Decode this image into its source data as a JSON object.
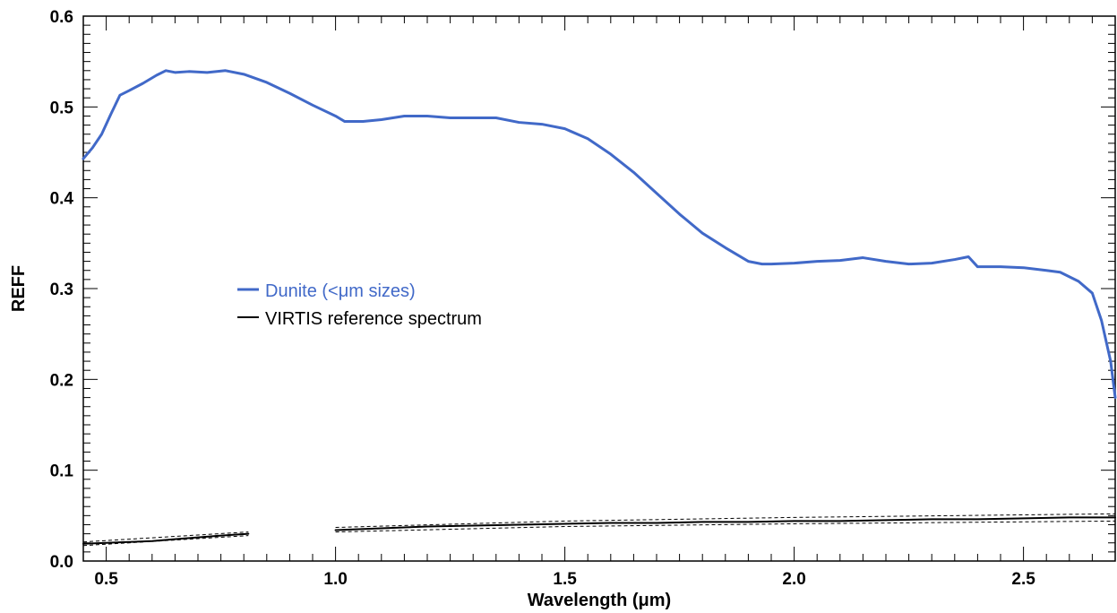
{
  "chart_data": {
    "type": "line",
    "xlabel": "Wavelength (μm)",
    "ylabel": "REFF",
    "xlim": [
      0.45,
      2.7
    ],
    "ylim": [
      0.0,
      0.6
    ],
    "x_ticks": [
      {
        "value": 0.5,
        "label": "0.5"
      },
      {
        "value": 1.0,
        "label": "1.0"
      },
      {
        "value": 1.5,
        "label": "1.5"
      },
      {
        "value": 2.0,
        "label": "2.0"
      },
      {
        "value": 2.5,
        "label": "2.5"
      }
    ],
    "y_ticks": [
      {
        "value": 0.0,
        "label": "0.0"
      },
      {
        "value": 0.1,
        "label": "0.1"
      },
      {
        "value": 0.2,
        "label": "0.2"
      },
      {
        "value": 0.3,
        "label": "0.3"
      },
      {
        "value": 0.4,
        "label": "0.4"
      },
      {
        "value": 0.5,
        "label": "0.5"
      },
      {
        "value": 0.6,
        "label": "0.6"
      }
    ],
    "legend_position": "center-left",
    "grid": false,
    "series": [
      {
        "name": "Dunite (<μm sizes)",
        "color": "#4169c8",
        "style": "solid",
        "segments": [
          {
            "x": [
              0.45,
              0.47,
              0.49,
              0.51,
              0.53,
              0.55,
              0.58,
              0.61,
              0.63,
              0.65,
              0.68,
              0.72,
              0.76,
              0.8,
              0.85,
              0.9,
              0.95,
              1.0,
              1.02,
              1.06,
              1.1,
              1.15,
              1.2,
              1.25,
              1.3,
              1.35,
              1.4,
              1.45,
              1.5,
              1.55,
              1.6,
              1.65,
              1.7,
              1.75,
              1.8,
              1.85,
              1.9,
              1.93,
              1.95,
              2.0,
              2.05,
              2.1,
              2.15,
              2.2,
              2.25,
              2.3,
              2.35,
              2.38,
              2.4,
              2.45,
              2.5,
              2.55,
              2.58,
              2.62,
              2.65,
              2.67,
              2.69,
              2.7
            ],
            "y": [
              0.443,
              0.455,
              0.47,
              0.492,
              0.513,
              0.518,
              0.526,
              0.535,
              0.54,
              0.538,
              0.539,
              0.538,
              0.54,
              0.536,
              0.527,
              0.515,
              0.502,
              0.49,
              0.484,
              0.484,
              0.486,
              0.49,
              0.49,
              0.488,
              0.488,
              0.488,
              0.483,
              0.481,
              0.476,
              0.465,
              0.448,
              0.428,
              0.405,
              0.382,
              0.361,
              0.345,
              0.33,
              0.327,
              0.327,
              0.328,
              0.33,
              0.331,
              0.334,
              0.33,
              0.327,
              0.328,
              0.332,
              0.335,
              0.324,
              0.324,
              0.323,
              0.32,
              0.318,
              0.308,
              0.295,
              0.265,
              0.22,
              0.18
            ]
          }
        ]
      },
      {
        "name": "VIRTIS reference spectrum",
        "color": "#000000",
        "style": "solid",
        "segments": [
          {
            "x": [
              0.45,
              0.5,
              0.55,
              0.6,
              0.65,
              0.7,
              0.75,
              0.81
            ],
            "y": [
              0.019,
              0.02,
              0.021,
              0.022,
              0.024,
              0.026,
              0.028,
              0.03
            ]
          },
          {
            "x": [
              1.0,
              1.1,
              1.2,
              1.3,
              1.4,
              1.5,
              1.6,
              1.7,
              1.8,
              1.9,
              2.0,
              2.1,
              2.2,
              2.3,
              2.4,
              2.5,
              2.6,
              2.7
            ],
            "y": [
              0.034,
              0.036,
              0.038,
              0.039,
              0.04,
              0.041,
              0.042,
              0.042,
              0.043,
              0.043,
              0.044,
              0.044,
              0.045,
              0.046,
              0.046,
              0.047,
              0.048,
              0.048
            ]
          }
        ]
      }
    ],
    "uncertainty_bands": {
      "color": "#000000",
      "style": "dashed",
      "segments": [
        {
          "x": [
            0.45,
            0.81
          ],
          "lower": [
            0.017,
            0.028
          ],
          "upper": [
            0.021,
            0.032
          ]
        },
        {
          "x": [
            1.0,
            1.5,
            2.0,
            2.7
          ],
          "lower": [
            0.032,
            0.038,
            0.041,
            0.044
          ],
          "upper": [
            0.037,
            0.044,
            0.048,
            0.052
          ]
        }
      ]
    }
  }
}
